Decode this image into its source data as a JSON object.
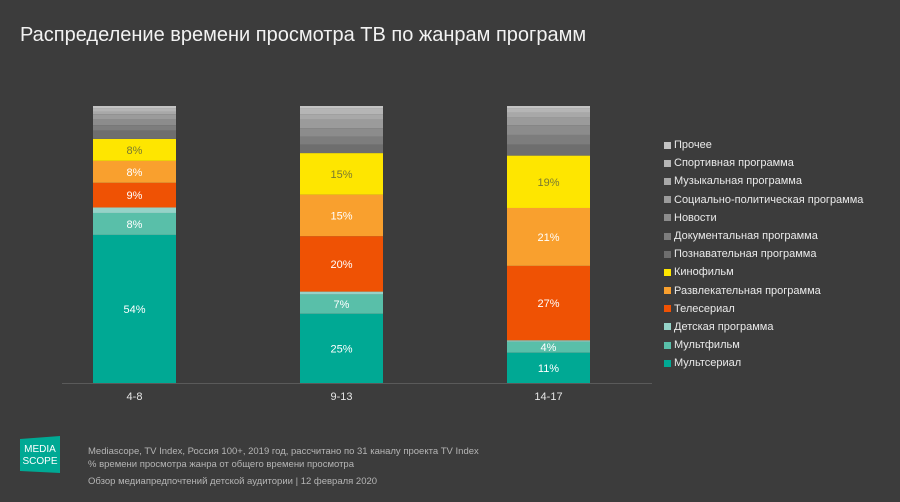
{
  "title": "Распределение времени просмотра ТВ по жанрам программ",
  "chart_data": {
    "type": "bar",
    "stacked": true,
    "title": "Распределение времени просмотра ТВ по жанрам программ",
    "categories": [
      "4-8",
      "9-13",
      "14-17"
    ],
    "ylim": [
      0,
      100
    ],
    "legend_position": "right",
    "series": [
      {
        "name": "Мультсериал",
        "color": "#00a994",
        "values": [
          54,
          25,
          11
        ],
        "labels": [
          "54%",
          "25%",
          "11%"
        ]
      },
      {
        "name": "Мультфильм",
        "color": "#59bfa9",
        "values": [
          8,
          7,
          4
        ],
        "labels": [
          "8%",
          "7%",
          "4%"
        ]
      },
      {
        "name": "Детская программа",
        "color": "#95d3c8",
        "values": [
          2,
          1,
          0.5
        ],
        "labels": [
          "",
          "",
          ""
        ]
      },
      {
        "name": "Телесериал",
        "color": "#ef5204",
        "values": [
          9,
          20,
          27
        ],
        "labels": [
          "9%",
          "20%",
          "27%"
        ]
      },
      {
        "name": "Развлекательная программа",
        "color": "#f9a02e",
        "values": [
          8,
          15,
          21
        ],
        "labels": [
          "8%",
          "15%",
          "21%"
        ]
      },
      {
        "name": "Кинофильм",
        "color": "#fee600",
        "values": [
          8,
          15,
          19
        ],
        "labels": [
          "8%",
          "15%",
          "19%"
        ]
      },
      {
        "name": "Познавательная программа",
        "color": "#6e6e6e",
        "values": [
          3,
          3,
          4
        ],
        "labels": [
          "",
          "",
          ""
        ]
      },
      {
        "name": "Документальная программа",
        "color": "#7d7d7d",
        "values": [
          2,
          3,
          3.5
        ],
        "labels": [
          "",
          "",
          ""
        ]
      },
      {
        "name": "Новости",
        "color": "#8c8c8c",
        "values": [
          2,
          3,
          3.5
        ],
        "labels": [
          "",
          "",
          ""
        ]
      },
      {
        "name": "Социально-политическая программа",
        "color": "#9b9b9b",
        "values": [
          2,
          3,
          3
        ],
        "labels": [
          "",
          "",
          ""
        ]
      },
      {
        "name": "Музыкальная программа",
        "color": "#a8a8a8",
        "values": [
          1,
          2,
          1.5
        ],
        "labels": [
          "",
          "",
          ""
        ]
      },
      {
        "name": "Спортивная программа",
        "color": "#b5b5b5",
        "values": [
          1,
          2,
          1.5
        ],
        "labels": [
          "",
          "",
          ""
        ]
      },
      {
        "name": "Прочее",
        "color": "#c3c3c3",
        "values": [
          1,
          1,
          1
        ],
        "labels": [
          "",
          "",
          ""
        ]
      }
    ],
    "label_colors": {
      "Кинофильм": "#7a7a30"
    }
  },
  "legend": [
    {
      "label": "Прочее",
      "color": "#c3c3c3"
    },
    {
      "label": "Спортивная программа",
      "color": "#b5b5b5"
    },
    {
      "label": "Музыкальная программа",
      "color": "#a8a8a8"
    },
    {
      "label": "Социально-политическая программа",
      "color": "#9b9b9b"
    },
    {
      "label": "Новости",
      "color": "#8c8c8c"
    },
    {
      "label": "Документальная программа",
      "color": "#7d7d7d"
    },
    {
      "label": "Познавательная программа",
      "color": "#6e6e6e"
    },
    {
      "label": "Кинофильм",
      "color": "#fee600"
    },
    {
      "label": "Развлекательная программа",
      "color": "#f9a02e"
    },
    {
      "label": "Телесериал",
      "color": "#ef5204"
    },
    {
      "label": "Детская программа",
      "color": "#95d3c8"
    },
    {
      "label": "Мультфильм",
      "color": "#59bfa9"
    },
    {
      "label": "Мультсериал",
      "color": "#00a994"
    }
  ],
  "footer": {
    "logo_text": "MEDIA SCOPE",
    "logo_color": "#00a994",
    "line1": "Mediascope, TV Index, Россия 100+, 2019 год, рассчитано по 31 каналу проекта TV Index",
    "line2": "% времени просмотра жанра от общего времени просмотра",
    "line3": "Обзор медиапредпочтений детской аудитории | 12 февраля 2020"
  }
}
